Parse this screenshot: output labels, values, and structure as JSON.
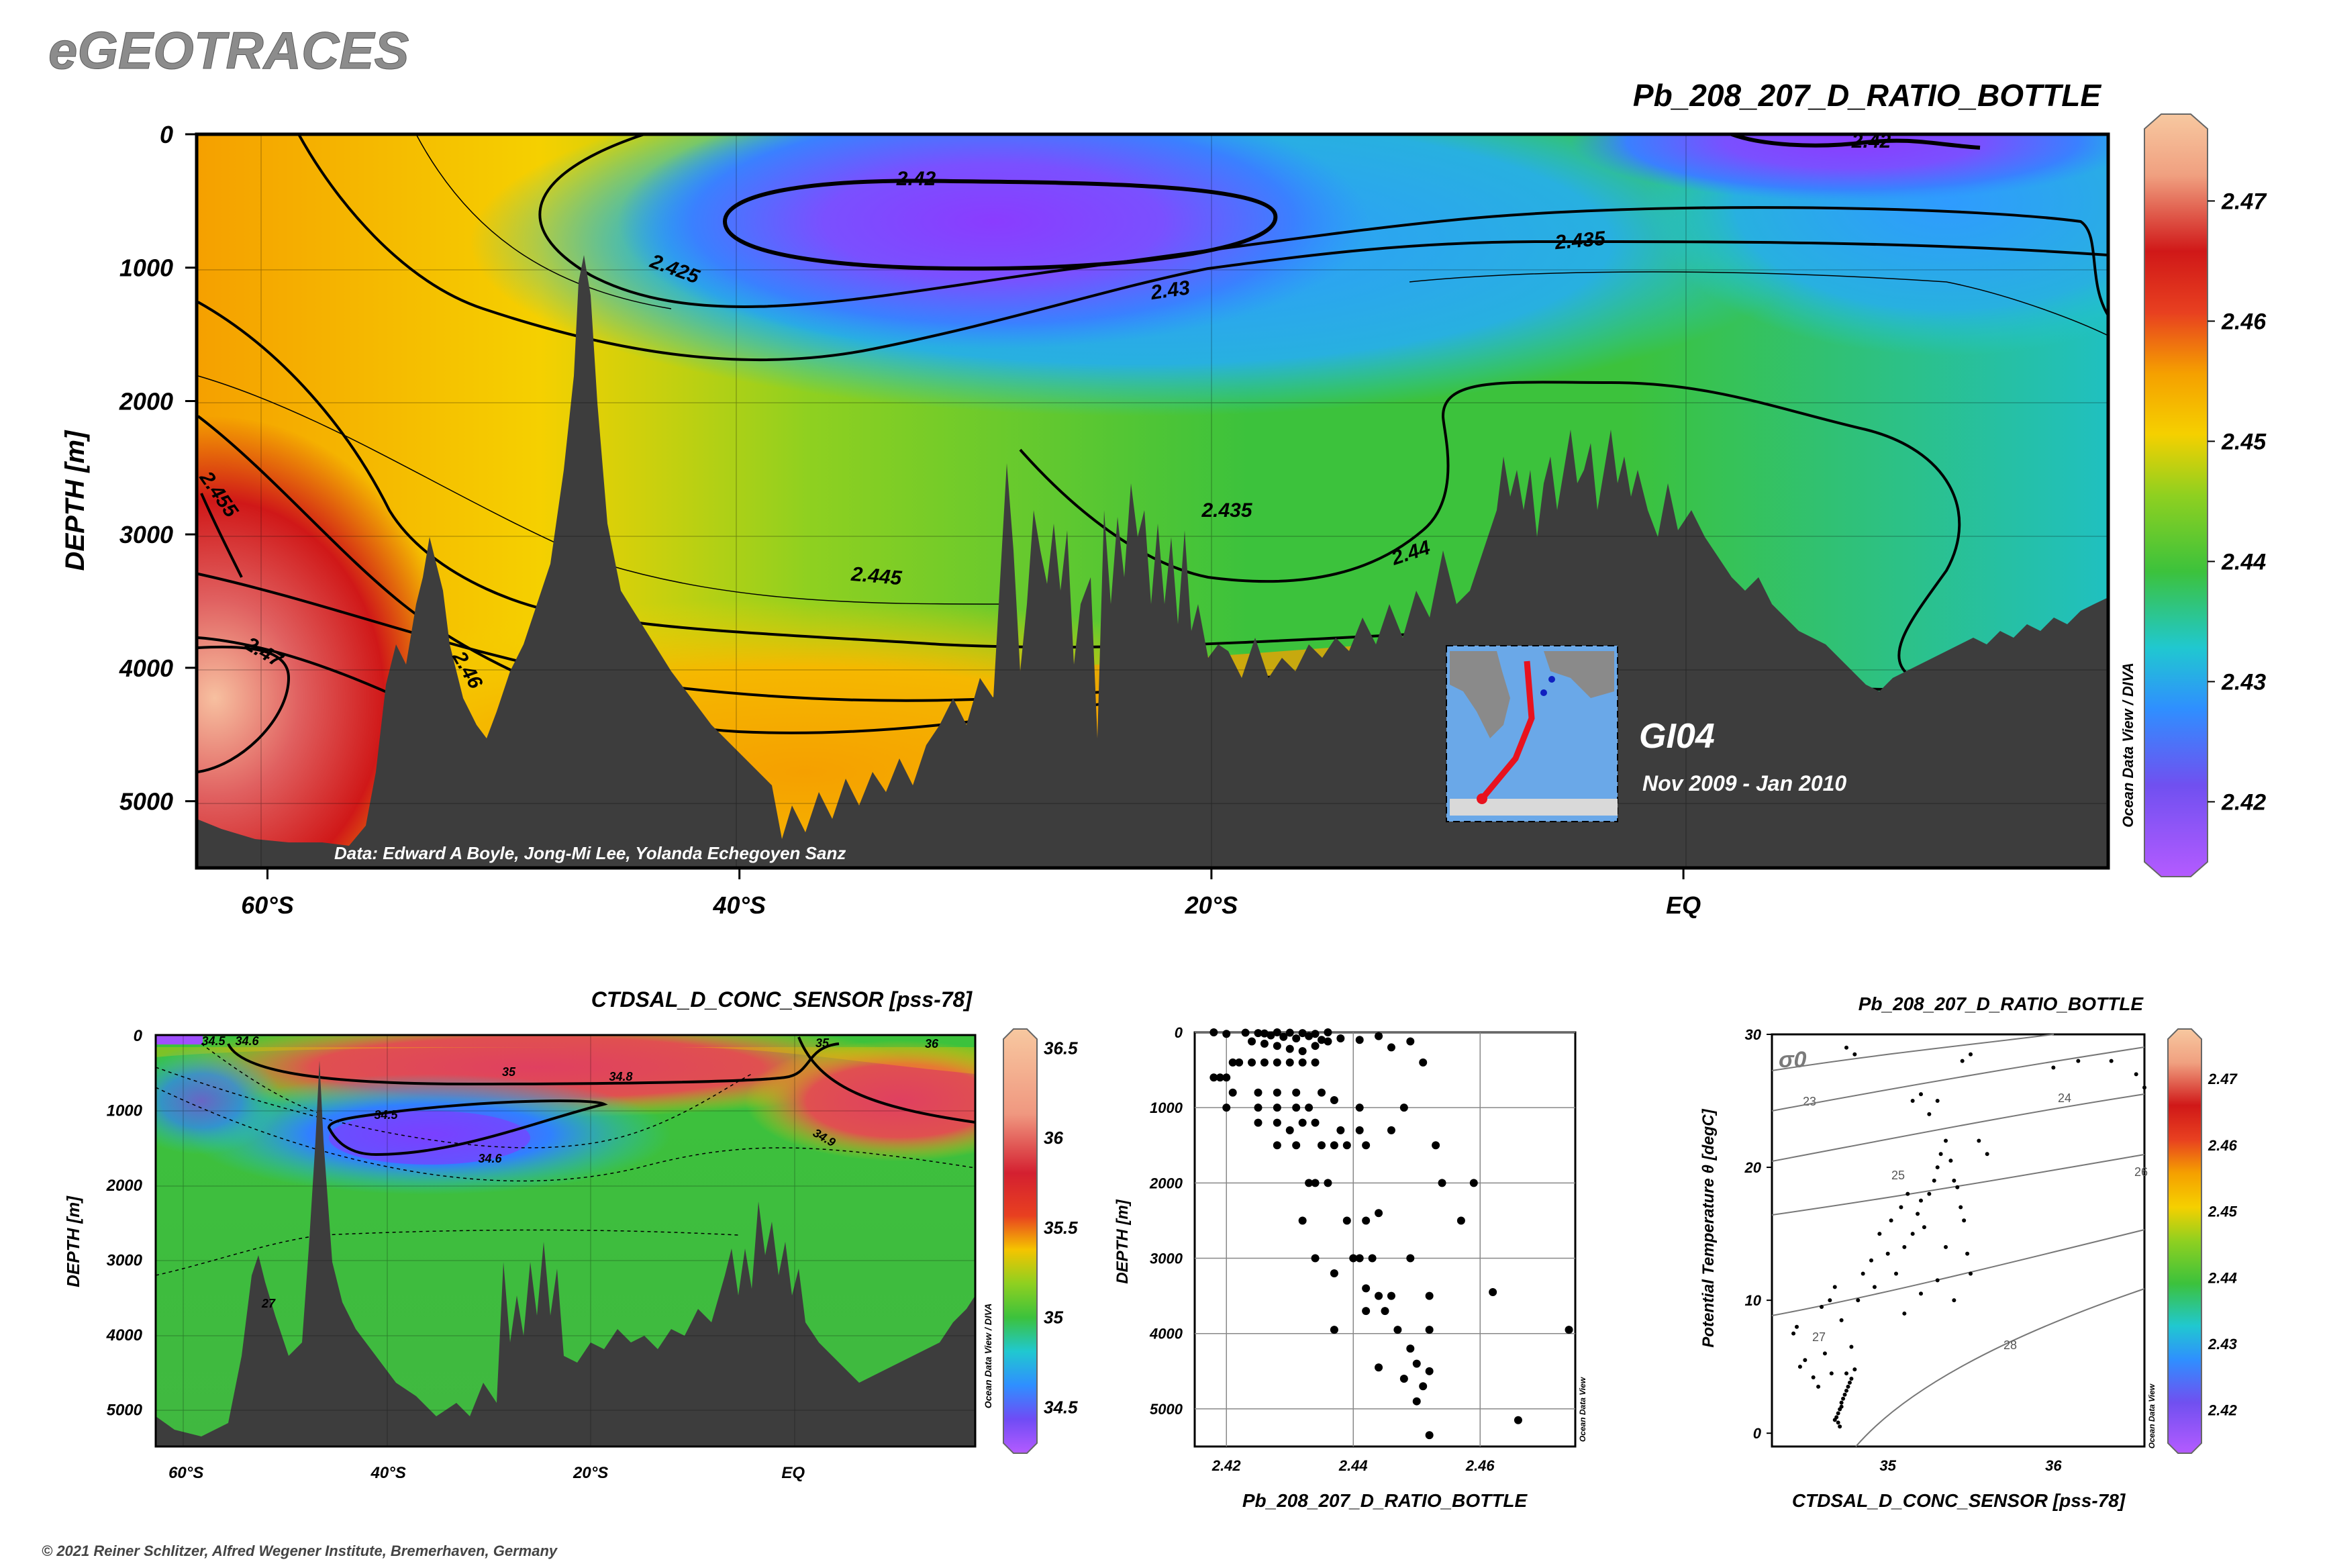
{
  "header": {
    "brand": "eGEOTRACES",
    "variable_title": "Pb_208_207_D_RATIO_BOTTLE",
    "credit": "Data: Edward A Boyle, Jong-Mi Lee, Yolanda Echegoyen Sanz",
    "cruise": "GI04",
    "dates": "Nov 2009 - Jan 2010",
    "copyright": "© 2021 Reiner Schlitzer, Alfred Wegener Institute, Bremerhaven, Germany",
    "odv_credit": "Ocean Data View / DIVA",
    "odv_credit_short": "Ocean Data View"
  },
  "colors": {
    "bathymetry": "#3d3d3d",
    "contour": "#000000",
    "scale": [
      "#8e3cff",
      "#2f8fff",
      "#20c8d0",
      "#3cc23c",
      "#8fd020",
      "#f5d000",
      "#f5a000",
      "#e84020",
      "#d01818",
      "#f0a080",
      "#f7c8a0"
    ]
  },
  "chart_data": [
    {
      "type": "heatmap",
      "title": "Pb_208_207_D_RATIO_BOTTLE",
      "xlabel": "",
      "ylabel": "DEPTH [m]",
      "x_ticks": [
        "60°S",
        "40°S",
        "20°S",
        "EQ"
      ],
      "x_tick_values": [
        -60,
        -40,
        -20,
        0
      ],
      "xlim": [
        -63,
        18
      ],
      "y_ticks": [
        0,
        1000,
        2000,
        3000,
        4000,
        5000
      ],
      "ylim": [
        5500,
        0
      ],
      "colorbar_ticks": [
        2.42,
        2.43,
        2.44,
        2.45,
        2.46,
        2.47
      ],
      "colorbar_range": [
        2.415,
        2.476
      ],
      "contour_labels": [
        "2.42",
        "2.42",
        "2.425",
        "2.43",
        "2.435",
        "2.435",
        "2.44",
        "2.445",
        "2.455",
        "2.46",
        "2.47"
      ]
    },
    {
      "type": "heatmap",
      "title": "CTDSAL_D_CONC_SENSOR [pss-78]",
      "xlabel": "",
      "ylabel": "DEPTH [m]",
      "x_ticks": [
        "60°S",
        "40°S",
        "20°S",
        "EQ"
      ],
      "x_tick_values": [
        -60,
        -40,
        -20,
        0
      ],
      "xlim": [
        -63,
        18
      ],
      "y_ticks": [
        0,
        1000,
        2000,
        3000,
        4000,
        5000
      ],
      "ylim": [
        5500,
        0
      ],
      "colorbar_ticks": [
        34.5,
        35,
        35.5,
        36,
        36.5
      ],
      "colorbar_range": [
        34.3,
        36.55
      ],
      "contour_labels": [
        "34.5",
        "34.6",
        "35",
        "34.8",
        "35",
        "36",
        "34.5",
        "34.6",
        "34.9",
        "27"
      ]
    },
    {
      "type": "scatter",
      "title": "",
      "xlabel": "Pb_208_207_D_RATIO_BOTTLE",
      "ylabel": "DEPTH [m]",
      "x_ticks": [
        2.42,
        2.44,
        2.46
      ],
      "xlim": [
        2.415,
        2.475
      ],
      "y_ticks": [
        0,
        1000,
        2000,
        3000,
        4000,
        5000
      ],
      "ylim": [
        5500,
        0
      ],
      "points": [
        [
          2.418,
          0
        ],
        [
          2.42,
          20
        ],
        [
          2.423,
          5
        ],
        [
          2.425,
          10
        ],
        [
          2.426,
          15
        ],
        [
          2.428,
          0
        ],
        [
          2.43,
          5
        ],
        [
          2.432,
          10
        ],
        [
          2.434,
          20
        ],
        [
          2.436,
          0
        ],
        [
          2.427,
          40
        ],
        [
          2.429,
          60
        ],
        [
          2.431,
          80
        ],
        [
          2.433,
          50
        ],
        [
          2.435,
          100
        ],
        [
          2.424,
          120
        ],
        [
          2.426,
          150
        ],
        [
          2.428,
          180
        ],
        [
          2.43,
          220
        ],
        [
          2.432,
          250
        ],
        [
          2.434,
          180
        ],
        [
          2.436,
          120
        ],
        [
          2.438,
          80
        ],
        [
          2.441,
          100
        ],
        [
          2.444,
          50
        ],
        [
          2.446,
          200
        ],
        [
          2.449,
          120
        ],
        [
          2.451,
          400
        ],
        [
          2.418,
          600
        ],
        [
          2.419,
          600
        ],
        [
          2.42,
          600
        ],
        [
          2.421,
          400
        ],
        [
          2.422,
          400
        ],
        [
          2.424,
          400
        ],
        [
          2.426,
          400
        ],
        [
          2.428,
          400
        ],
        [
          2.43,
          400
        ],
        [
          2.432,
          400
        ],
        [
          2.434,
          400
        ],
        [
          2.421,
          800
        ],
        [
          2.425,
          800
        ],
        [
          2.428,
          800
        ],
        [
          2.431,
          800
        ],
        [
          2.435,
          800
        ],
        [
          2.42,
          1000
        ],
        [
          2.425,
          1000
        ],
        [
          2.428,
          1000
        ],
        [
          2.431,
          1000
        ],
        [
          2.433,
          1000
        ],
        [
          2.437,
          900
        ],
        [
          2.441,
          1000
        ],
        [
          2.448,
          1000
        ],
        [
          2.425,
          1200
        ],
        [
          2.428,
          1200
        ],
        [
          2.43,
          1300
        ],
        [
          2.432,
          1200
        ],
        [
          2.434,
          1200
        ],
        [
          2.438,
          1300
        ],
        [
          2.441,
          1300
        ],
        [
          2.446,
          1300
        ],
        [
          2.428,
          1500
        ],
        [
          2.431,
          1500
        ],
        [
          2.435,
          1500
        ],
        [
          2.437,
          1500
        ],
        [
          2.439,
          1500
        ],
        [
          2.442,
          1500
        ],
        [
          2.453,
          1500
        ],
        [
          2.433,
          2000
        ],
        [
          2.434,
          2000
        ],
        [
          2.436,
          2000
        ],
        [
          2.454,
          2000
        ],
        [
          2.459,
          2000
        ],
        [
          2.432,
          2500
        ],
        [
          2.439,
          2500
        ],
        [
          2.442,
          2500
        ],
        [
          2.444,
          2400
        ],
        [
          2.457,
          2500
        ],
        [
          2.434,
          3000
        ],
        [
          2.44,
          3000
        ],
        [
          2.441,
          3000
        ],
        [
          2.443,
          3000
        ],
        [
          2.449,
          3000
        ],
        [
          2.437,
          3200
        ],
        [
          2.442,
          3400
        ],
        [
          2.444,
          3500
        ],
        [
          2.446,
          3500
        ],
        [
          2.452,
          3500
        ],
        [
          2.442,
          3700
        ],
        [
          2.445,
          3700
        ],
        [
          2.462,
          3450
        ],
        [
          2.437,
          3950
        ],
        [
          2.447,
          3950
        ],
        [
          2.452,
          3950
        ],
        [
          2.474,
          3950
        ],
        [
          2.449,
          4200
        ],
        [
          2.45,
          4400
        ],
        [
          2.452,
          4500
        ],
        [
          2.444,
          4450
        ],
        [
          2.448,
          4600
        ],
        [
          2.451,
          4700
        ],
        [
          2.45,
          4900
        ],
        [
          2.466,
          5150
        ],
        [
          2.452,
          5350
        ]
      ]
    },
    {
      "type": "scatter",
      "title": "Pb_208_207_D_RATIO_BOTTLE",
      "xlabel": "CTDSAL_D_CONC_SENSOR [pss-78]",
      "ylabel": "Potential Temperature θ [degC]",
      "x_ticks": [
        35,
        36
      ],
      "xlim": [
        34.3,
        36.55
      ],
      "y_ticks": [
        0,
        10,
        20,
        30
      ],
      "ylim": [
        -1,
        30
      ],
      "isopycnal_label": "σ0",
      "isopycnal_values": [
        23,
        24,
        25,
        26,
        27,
        28
      ],
      "colorbar_ticks": [
        2.42,
        2.43,
        2.44,
        2.45,
        2.46,
        2.47
      ],
      "points": [
        [
          34.68,
          1
        ],
        [
          34.69,
          1.2
        ],
        [
          34.7,
          1.5
        ],
        [
          34.71,
          1.8
        ],
        [
          34.72,
          2
        ],
        [
          34.72,
          2.3
        ],
        [
          34.73,
          2.6
        ],
        [
          34.74,
          2.9
        ],
        [
          34.75,
          3.2
        ],
        [
          34.76,
          3.5
        ],
        [
          34.77,
          3.8
        ],
        [
          34.78,
          4.1
        ],
        [
          34.7,
          0.8
        ],
        [
          34.71,
          0.5
        ],
        [
          34.75,
          4.5
        ],
        [
          34.8,
          4.8
        ],
        [
          34.62,
          6
        ],
        [
          34.66,
          4.5
        ],
        [
          34.58,
          3.5
        ],
        [
          34.55,
          4.2
        ],
        [
          34.5,
          5.5
        ],
        [
          34.47,
          5
        ],
        [
          34.43,
          7.5
        ],
        [
          34.45,
          8
        ],
        [
          34.6,
          9.5
        ],
        [
          34.65,
          10
        ],
        [
          34.68,
          11
        ],
        [
          34.72,
          8.5
        ],
        [
          34.78,
          6.5
        ],
        [
          34.82,
          10
        ],
        [
          34.85,
          12
        ],
        [
          34.9,
          13
        ],
        [
          34.92,
          11
        ],
        [
          34.95,
          15
        ],
        [
          35,
          13.5
        ],
        [
          35.02,
          16
        ],
        [
          35.05,
          12
        ],
        [
          35.08,
          17
        ],
        [
          35.1,
          14
        ],
        [
          35.12,
          18
        ],
        [
          35.15,
          15
        ],
        [
          35.18,
          16.5
        ],
        [
          35.2,
          17.5
        ],
        [
          35.22,
          15.5
        ],
        [
          35.25,
          18
        ],
        [
          35.28,
          19
        ],
        [
          35.3,
          20
        ],
        [
          35.32,
          21
        ],
        [
          35.35,
          22
        ],
        [
          35.38,
          20.5
        ],
        [
          35.4,
          19
        ],
        [
          35.42,
          18.5
        ],
        [
          35.44,
          17
        ],
        [
          35.46,
          16
        ],
        [
          35.48,
          13.5
        ],
        [
          35.5,
          12
        ],
        [
          35.35,
          14
        ],
        [
          35.3,
          11.5
        ],
        [
          35.4,
          10
        ],
        [
          35.2,
          10.5
        ],
        [
          35.1,
          9
        ],
        [
          35.55,
          22
        ],
        [
          35.6,
          21
        ],
        [
          35.15,
          25
        ],
        [
          35.2,
          25.5
        ],
        [
          35.3,
          25
        ],
        [
          35.45,
          28
        ],
        [
          35.5,
          28.5
        ],
        [
          36,
          27.5
        ],
        [
          36.15,
          28
        ],
        [
          36.35,
          28
        ],
        [
          36.5,
          27
        ],
        [
          36.55,
          26
        ],
        [
          34.8,
          28.5
        ],
        [
          34.75,
          29
        ],
        [
          35.25,
          24
        ]
      ]
    }
  ]
}
